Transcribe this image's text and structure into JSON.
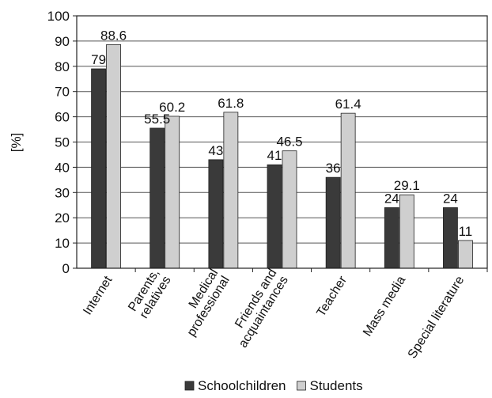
{
  "chart_data": {
    "type": "bar",
    "title": "",
    "xlabel": "",
    "ylabel": "[%]",
    "ylim": [
      0,
      100
    ],
    "yticks": [
      0,
      10,
      20,
      30,
      40,
      50,
      60,
      70,
      80,
      90,
      100
    ],
    "grid": true,
    "legend_position": "bottom",
    "categories": [
      [
        "Internet"
      ],
      [
        "Parents,",
        "relatives"
      ],
      [
        "Medical",
        "professional"
      ],
      [
        "Friends and",
        "acquaintances"
      ],
      [
        "Teacher"
      ],
      [
        "Mass media"
      ],
      [
        "Special literature"
      ]
    ],
    "series": [
      {
        "name": "Schoolchildren",
        "color": "#3a3a3a",
        "values": [
          79,
          55.5,
          43,
          41,
          36,
          24,
          24
        ]
      },
      {
        "name": "Students",
        "color": "#cfcfcf",
        "values": [
          88.6,
          60.2,
          61.8,
          46.5,
          61.4,
          29.1,
          11
        ]
      }
    ]
  }
}
